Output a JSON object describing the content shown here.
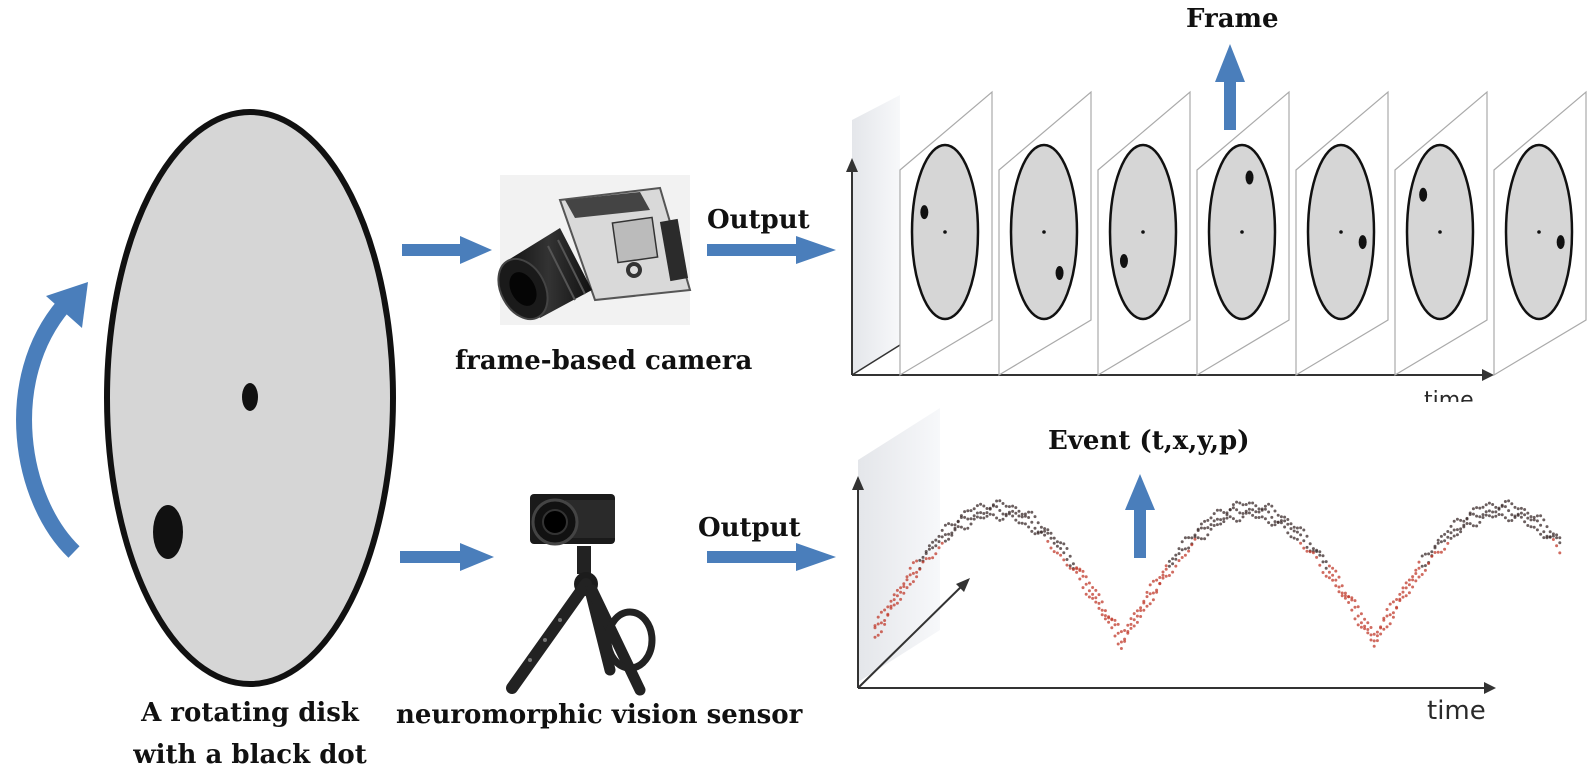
{
  "labels": {
    "frame": "Frame",
    "event": "Event (t,x,y,p)",
    "output_top": "Output",
    "output_bottom": "Output",
    "frame_camera": "frame-based camera",
    "neuromorphic_sensor": "neuromorphic vision sensor",
    "disk_line1": "A rotating disk",
    "disk_line2": "with a black dot",
    "time_top": "time",
    "time_bottom": "time"
  },
  "colors": {
    "arrow_blue": "#4a7ebb",
    "disk_fill": "#d6d6d6",
    "event_red": "#c0392b",
    "event_dark": "#3a2a2a"
  },
  "icons": {
    "rotation": "curved-arrow-icon",
    "camera": "frame-camera-icon",
    "sensor": "neuromorphic-sensor-icon"
  }
}
